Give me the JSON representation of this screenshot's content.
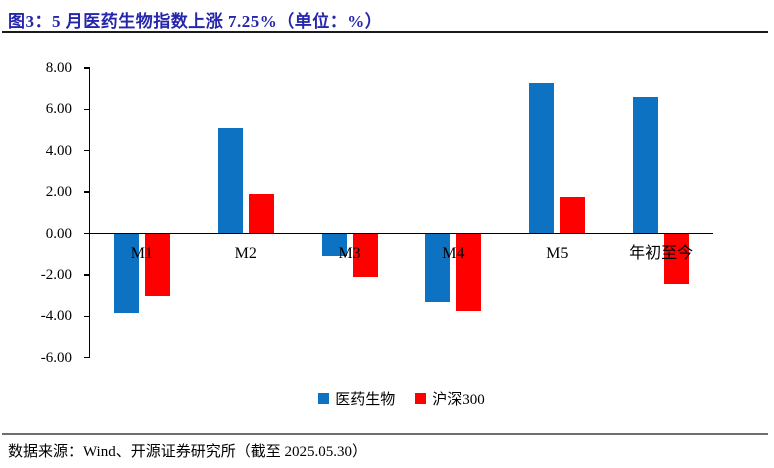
{
  "header": {
    "title": "图3：5 月医药生物指数上涨 7.25%（单位：%）"
  },
  "footer": {
    "source": "数据来源：Wind、开源证券研究所（截至 2025.05.30）"
  },
  "colors": {
    "title": "#2626ab",
    "axis": "#000000",
    "footer_rule": "#6e6e6e",
    "series_blue": "#0d72c2",
    "series_red": "#fe0000"
  },
  "chart_data": {
    "type": "bar",
    "categories": [
      "M1",
      "M2",
      "M3",
      "M4",
      "M5",
      "年初至今"
    ],
    "series": [
      {
        "name": "医药生物",
        "color": "#0d72c2",
        "values": [
          -3.8,
          5.1,
          -1.05,
          -3.25,
          7.25,
          6.6
        ]
      },
      {
        "name": "沪深300",
        "color": "#fe0000",
        "values": [
          -3.0,
          1.9,
          -2.05,
          -3.7,
          1.75,
          -2.4
        ]
      }
    ],
    "title": "",
    "xlabel": "",
    "ylabel": "",
    "ylim": [
      -6,
      8
    ],
    "ytick_step": 2,
    "ytick_labels": [
      "8.00",
      "6.00",
      "4.00",
      "2.00",
      "0.00",
      "-2.00",
      "-4.00",
      "-6.00"
    ],
    "grid": false,
    "legend_position": "bottom"
  }
}
